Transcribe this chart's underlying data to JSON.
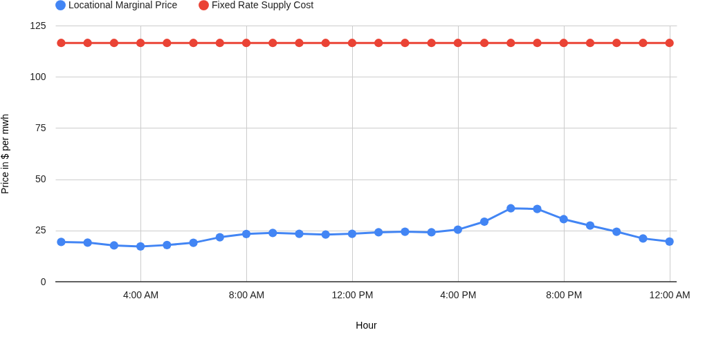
{
  "chart_data": {
    "type": "line",
    "xlabel": "Hour",
    "ylabel": "Price in $ per mwh",
    "x": [
      1,
      2,
      3,
      4,
      5,
      6,
      7,
      8,
      9,
      10,
      11,
      12,
      13,
      14,
      15,
      16,
      17,
      18,
      19,
      20,
      21,
      22,
      23,
      24
    ],
    "series": [
      {
        "name": "Locational Marginal Price",
        "color": "#4285f4",
        "values": [
          19.4,
          19.1,
          17.7,
          17.2,
          17.9,
          19.0,
          21.7,
          23.3,
          23.8,
          23.4,
          23.0,
          23.4,
          24.1,
          24.4,
          24.1,
          25.4,
          29.3,
          35.8,
          35.5,
          30.5,
          27.4,
          24.4,
          21.1,
          19.6
        ]
      },
      {
        "name": "Fixed Rate Supply Cost",
        "color": "#ea4335",
        "values": [
          116.5,
          116.5,
          116.5,
          116.5,
          116.5,
          116.5,
          116.5,
          116.5,
          116.5,
          116.5,
          116.5,
          116.5,
          116.5,
          116.5,
          116.5,
          116.5,
          116.5,
          116.5,
          116.5,
          116.5,
          116.5,
          116.5,
          116.5,
          116.5
        ]
      }
    ],
    "xlim": [
      0.78,
      24.27
    ],
    "xticks": [
      {
        "value": 4,
        "label": "4:00 AM"
      },
      {
        "value": 8,
        "label": "8:00 AM"
      },
      {
        "value": 12,
        "label": "12:00 PM"
      },
      {
        "value": 16,
        "label": "4:00 PM"
      },
      {
        "value": 20,
        "label": "8:00 PM"
      },
      {
        "value": 24,
        "label": "12:00 AM"
      }
    ],
    "ylim": [
      0,
      125
    ],
    "yticks": [
      0,
      25,
      50,
      75,
      100,
      125
    ],
    "grid": true,
    "legend": "top",
    "marker": "circle",
    "line_style": "solid"
  }
}
